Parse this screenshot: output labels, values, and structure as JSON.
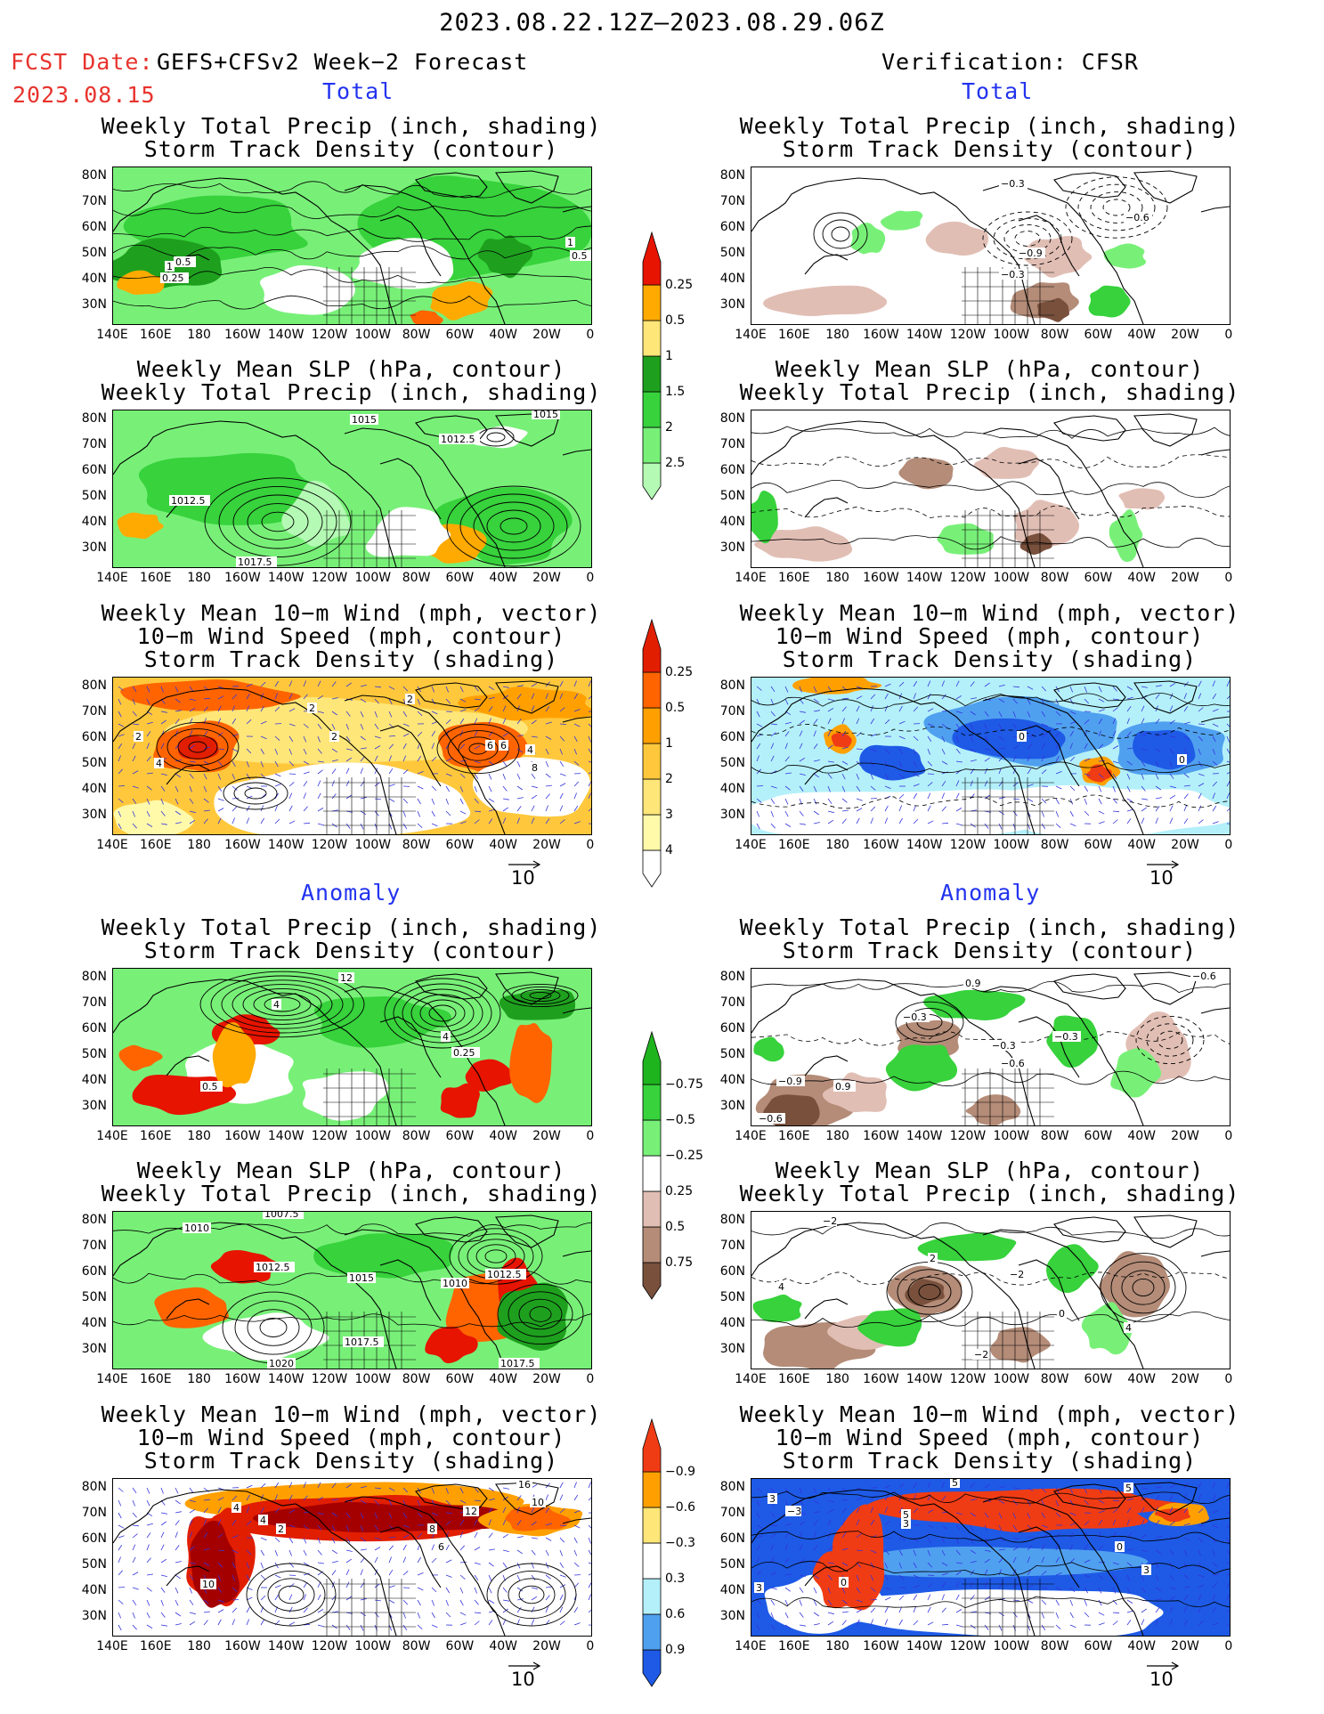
{
  "header": {
    "date_range": "2023.08.22.12Z–2023.08.29.06Z",
    "fcst_label": "FCST Date:",
    "fcst_date": "2023.08.15",
    "left_title": "GEFS+CFSv2 Week−2 Forecast",
    "right_title": "Verification: CFSR"
  },
  "sections": {
    "total": "Total",
    "anomaly": "Anomaly"
  },
  "panel_titles": {
    "precip_storm": [
      "Weekly Total Precip (inch, shading)",
      "Storm Track Density (contour)"
    ],
    "slp_precip": [
      "Weekly Mean SLP (hPa, contour)",
      "Weekly Total Precip (inch, shading)"
    ],
    "wind_storm": [
      "Weekly Mean 10−m Wind (mph, vector)",
      "10−m Wind Speed (mph, contour)",
      "Storm Track Density (shading)"
    ]
  },
  "axes": {
    "lat_labels": [
      "80N",
      "70N",
      "60N",
      "50N",
      "40N",
      "30N"
    ],
    "lon_labels": [
      "140E",
      "160E",
      "180",
      "160W",
      "140W",
      "120W",
      "100W",
      "80W",
      "60W",
      "40W",
      "20W",
      "0"
    ]
  },
  "vector_ref": "10",
  "colorbars": {
    "precip_total": [
      "0.25",
      "0.5",
      "1",
      "1.5",
      "2",
      "2.5"
    ],
    "storm_total": [
      "0.25",
      "0.5",
      "1",
      "2",
      "3",
      "4"
    ],
    "precip_anom": [
      "−0.75",
      "−0.5",
      "−0.25",
      "0.25",
      "0.5",
      "0.75"
    ],
    "storm_anom": [
      "−0.9",
      "−0.6",
      "−0.3",
      "0.3",
      "0.6",
      "0.9"
    ]
  },
  "contour_labels": {
    "p1": [
      "1",
      "0.5",
      "0.25",
      "1",
      "0.5"
    ],
    "p2": [
      "1015",
      "1012.5",
      "1015",
      "1012.5",
      "1017.5"
    ],
    "p3": [
      "2",
      "2",
      "2",
      "4",
      "6",
      "6",
      "4",
      "8",
      "2"
    ],
    "p4": [
      "12",
      "4",
      "4",
      "0.25",
      "0.5"
    ],
    "p5": [
      "1010",
      "1007.5",
      "1012.5",
      "1015",
      "1010",
      "1012.5",
      "1017.5",
      "1020",
      "1017.5"
    ],
    "p6": [
      "4",
      "4",
      "2",
      "10",
      "8",
      "6",
      "12",
      "16",
      "10"
    ],
    "p7": [
      "−0.3",
      "−0.6",
      "−0.9",
      "−0.3"
    ],
    "p9": [
      "0",
      "0"
    ],
    "p10": [
      "−0.6",
      "0.9",
      "−0.3",
      "−0.3",
      "−0.6",
      "−0.3",
      "−0.9",
      "0.9",
      "−0.6"
    ],
    "p11": [
      "−2",
      "2",
      "−2",
      "0",
      "4",
      "4",
      "−2"
    ],
    "p12": [
      "5",
      "3",
      "5",
      "3",
      "0",
      "0",
      "3",
      "3",
      "−3",
      "5"
    ]
  },
  "colors": {
    "precip": [
      "#b4fab4",
      "#78f078",
      "#37d23c",
      "#1ea01e",
      "#ffe678",
      "#ffaa00",
      "#ff6400",
      "#e61400"
    ],
    "storm_total": [
      "#fffaaa",
      "#ffe678",
      "#ffc83c",
      "#ffa000",
      "#ff6400",
      "#e11e00",
      "#a50000"
    ],
    "dry": [
      "#e1beb4",
      "#b48c78",
      "#78503c"
    ],
    "wet": [
      "#78f078",
      "#37d23c",
      "#1eb41e"
    ],
    "neg_storm": [
      "#b4f0fa",
      "#50a0f0",
      "#1e5ae6"
    ],
    "pos_storm": [
      "#ffe678",
      "#ffa000",
      "#f03c14"
    ]
  }
}
